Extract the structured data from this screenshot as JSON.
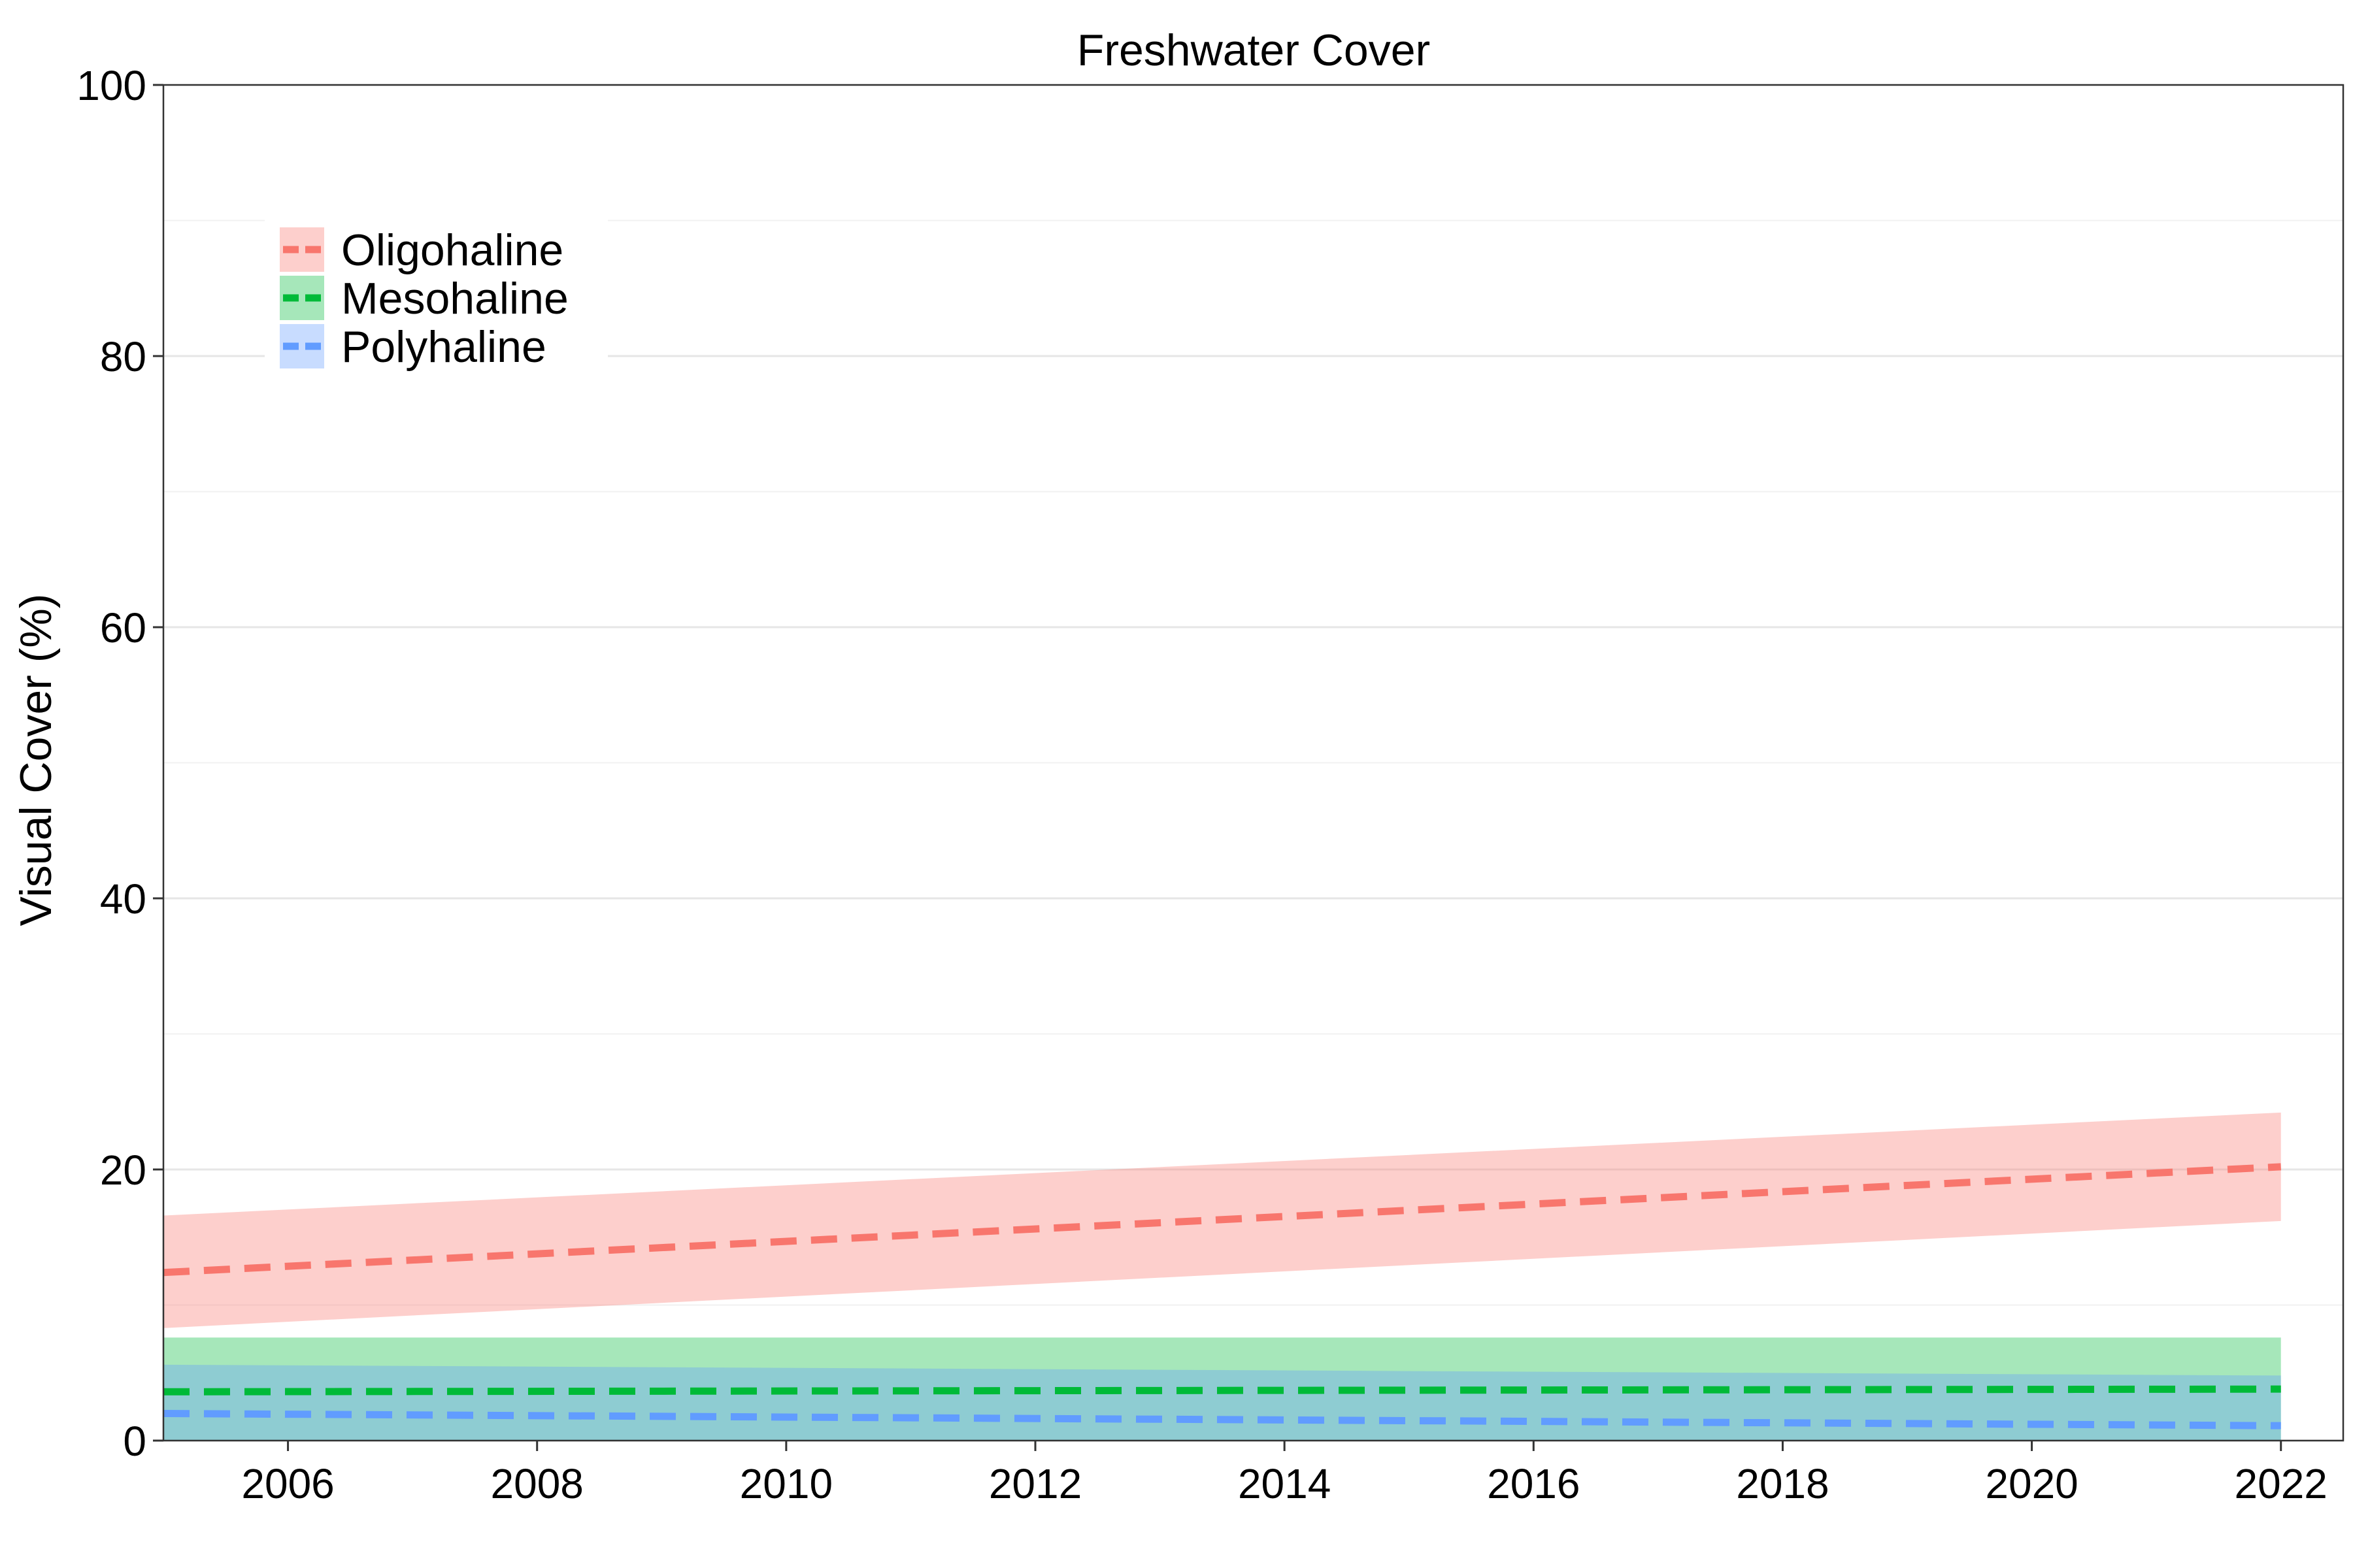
{
  "chart_data": {
    "type": "area",
    "title": "Freshwater Cover",
    "xlabel": "",
    "ylabel": "Visual Cover (%)",
    "xlim": [
      2005,
      2022.5
    ],
    "ylim": [
      0,
      100
    ],
    "x_ticks": [
      2006,
      2008,
      2010,
      2012,
      2014,
      2016,
      2018,
      2020,
      2022
    ],
    "y_ticks": [
      0,
      20,
      40,
      60,
      80,
      100
    ],
    "grid": true,
    "legend_position": "top-left",
    "series": [
      {
        "name": "Oligohaline",
        "color": "#F8766D",
        "x": [
          2005,
          2022
        ],
        "fit": [
          12.4,
          20.2
        ],
        "lower": [
          8.3,
          16.2
        ],
        "upper": [
          16.6,
          24.2
        ]
      },
      {
        "name": "Mesohaline",
        "color": "#00BA38",
        "x": [
          2005,
          2022
        ],
        "fit": [
          3.6,
          3.8
        ],
        "lower": [
          0.0,
          0.0
        ],
        "upper": [
          7.6,
          7.6
        ]
      },
      {
        "name": "Polyhaline",
        "color": "#619CFF",
        "x": [
          2005,
          2022
        ],
        "fit": [
          2.0,
          1.1
        ],
        "lower": [
          0.0,
          0.0
        ],
        "upper": [
          5.6,
          4.8
        ]
      }
    ]
  }
}
